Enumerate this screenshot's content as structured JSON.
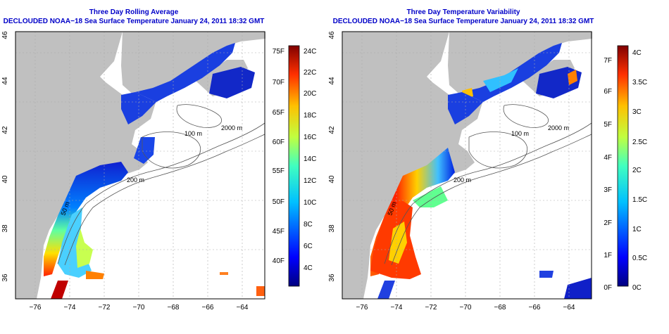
{
  "panels": [
    {
      "title_line1": "Three Day Rolling Average",
      "title_line2": "DECLOUDED NOAA−18 Sea Surface Temperature January 24, 2011 18:32 GMT",
      "lon_ticks": [
        "−76",
        "−74",
        "−72",
        "−70",
        "−68",
        "−66",
        "−64"
      ],
      "lat_ticks": [
        "36",
        "38",
        "40",
        "42",
        "44",
        "46"
      ],
      "colorbar": {
        "left_labels": [
          "75F",
          "70F",
          "65F",
          "60F",
          "55F",
          "50F",
          "45F",
          "40F"
        ],
        "right_labels": [
          "24C",
          "22C",
          "20C",
          "18C",
          "16C",
          "14C",
          "12C",
          "10C",
          "8C",
          "6C",
          "4C"
        ]
      },
      "contour_labels": [
        "50 m",
        "100 m",
        "200 m",
        "2000 m"
      ]
    },
    {
      "title_line1": "Three Day Temperature Variability",
      "title_line2": "DECLOUDED NOAA−18 Sea Surface Temperature January 24, 2011 18:32 GMT",
      "lon_ticks": [
        "−76",
        "−74",
        "−72",
        "−70",
        "−68",
        "−66",
        "−64"
      ],
      "lat_ticks": [
        "36",
        "38",
        "40",
        "42",
        "44",
        "46"
      ],
      "colorbar": {
        "left_labels": [
          "7F",
          "6F",
          "5F",
          "4F",
          "3F",
          "2F",
          "1F",
          "0F"
        ],
        "right_labels": [
          "4C",
          "3.5C",
          "3C",
          "2.5C",
          "2C",
          "1.5C",
          "1C",
          "0.5C",
          "0C"
        ]
      },
      "contour_labels": [
        "50 m",
        "100 m",
        "200 m",
        "2000 m"
      ]
    }
  ],
  "colors": {
    "title": "#0000c8",
    "land": "#c0c0c0",
    "ocean": "#ffffff",
    "contour": "#555555",
    "grid": "#aaaaaa"
  }
}
